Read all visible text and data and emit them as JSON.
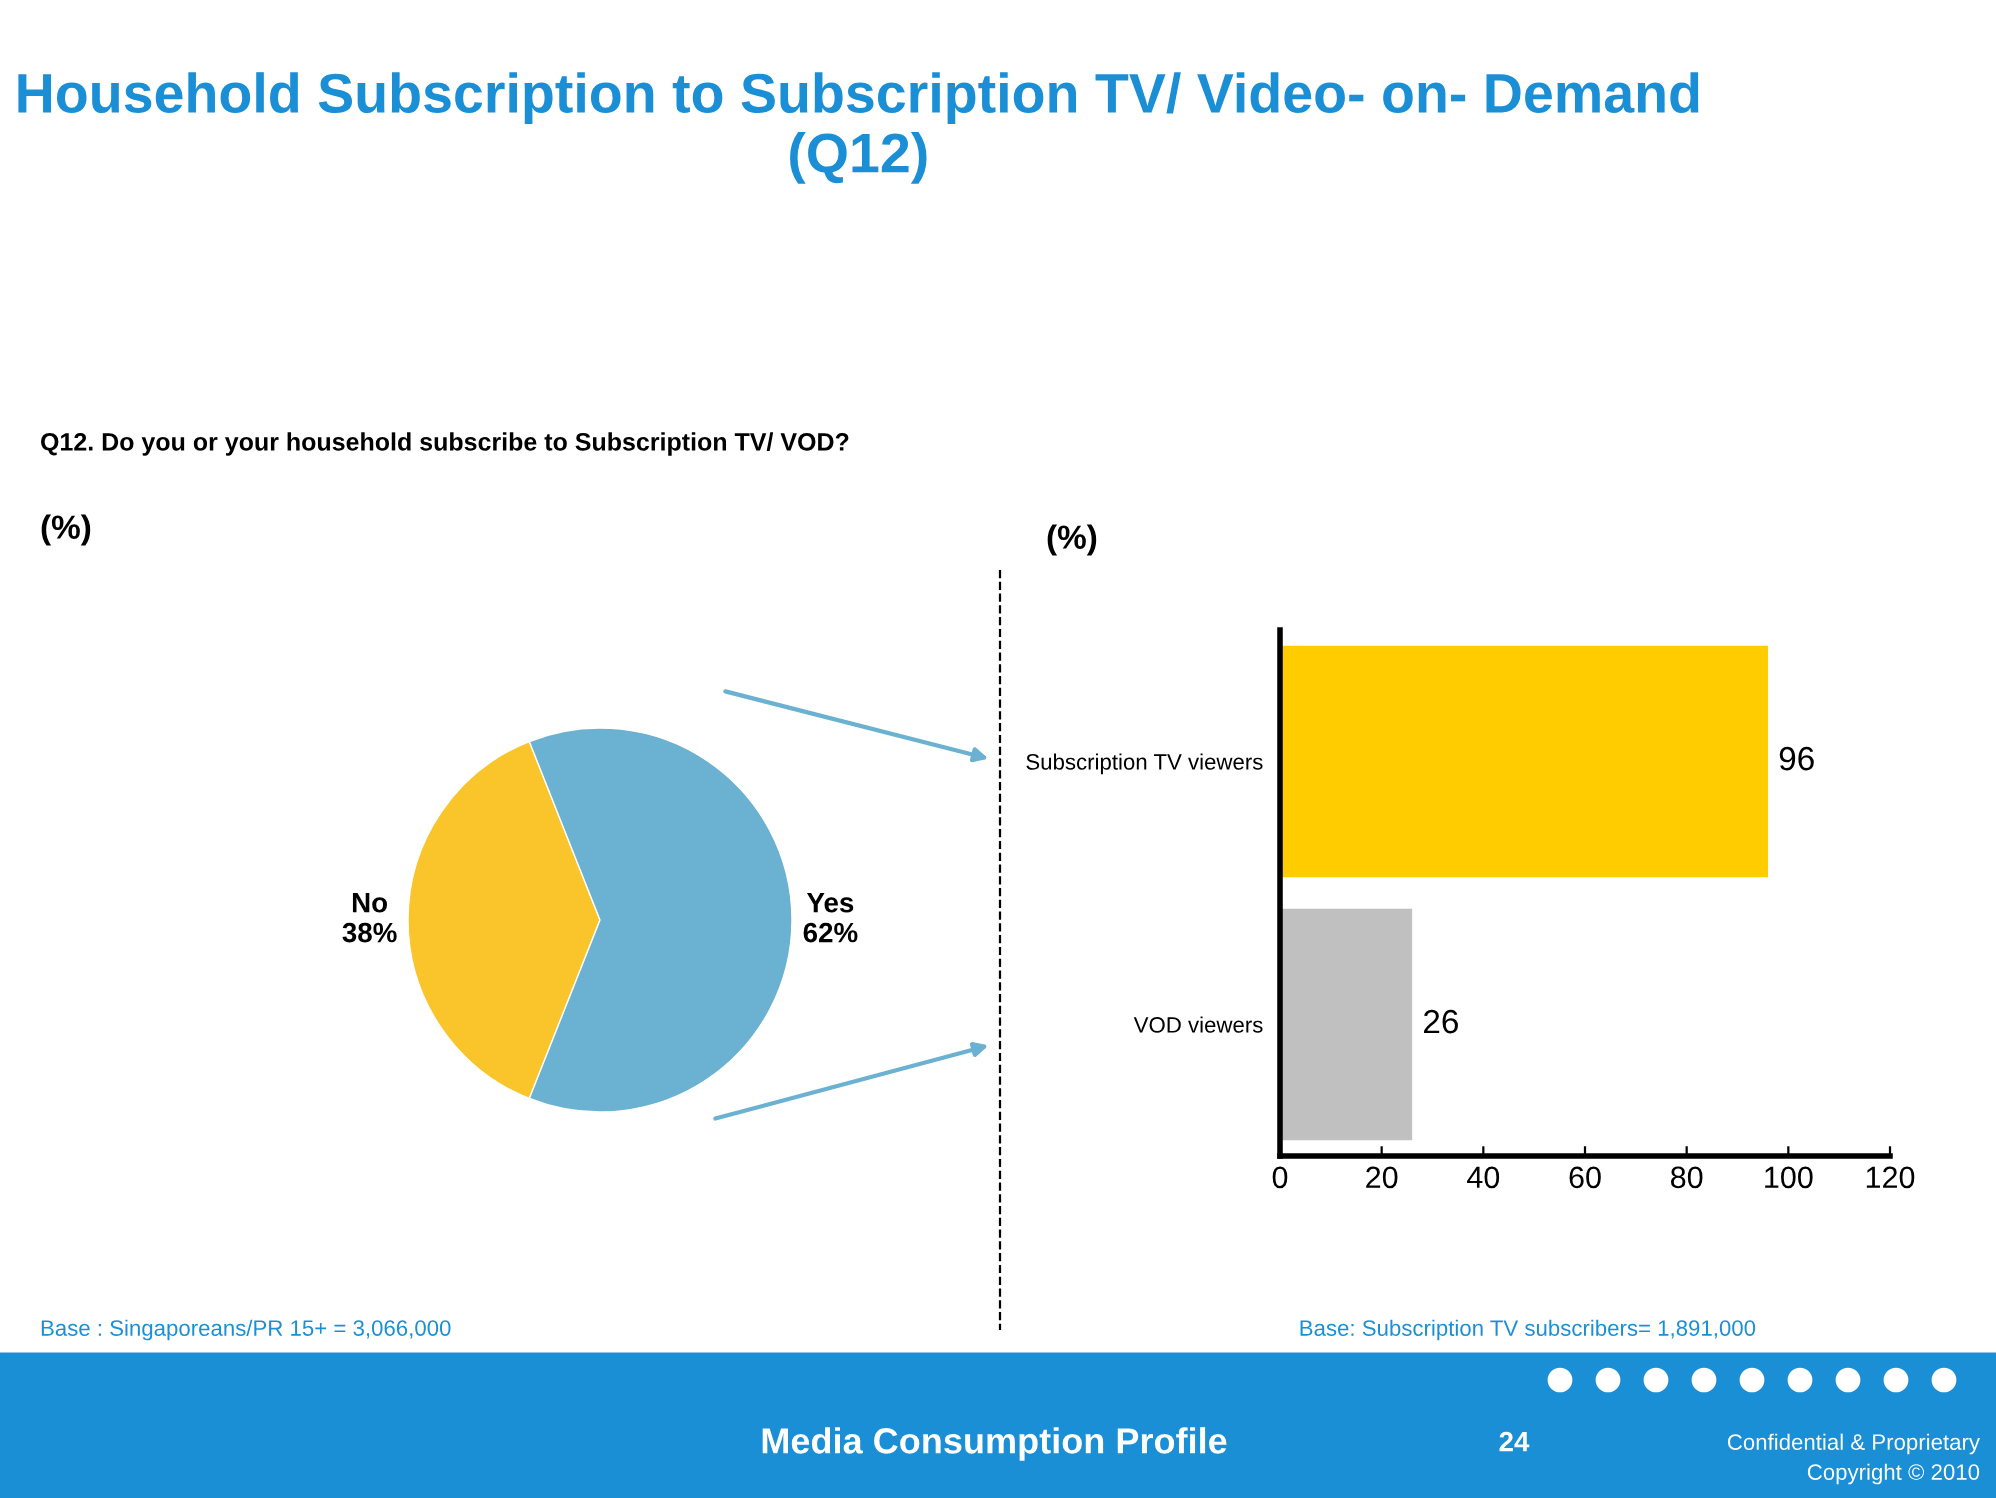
{
  "chart_data": [
    {
      "type": "pie",
      "title": "Household Subscription to Subscription TV/ Video- on- Demand (Q12)",
      "subtitle": "Q12. Do you or your household subscribe to Subscription TV/ VOD?",
      "categories": [
        "No",
        "Yes"
      ],
      "values": [
        38,
        62
      ],
      "colors": [
        "#f9c52b",
        "#6bb1d1"
      ],
      "value_labels": [
        "38%",
        "62%"
      ],
      "annotations": [
        "(%)",
        "Base : Singaporeans/PR 15+ = 3,066,000",
        "Media Consumption Profile",
        "24",
        "Confidential & Proprietary",
        "Copyright © 2010"
      ]
    },
    {
      "type": "bar",
      "orientation": "horizontal",
      "categories": [
        "Subscription TV viewers",
        "VOD viewers"
      ],
      "values": [
        96,
        26
      ],
      "colors": [
        "#ffcc00",
        "#c0c0c0"
      ],
      "xlim": [
        0,
        120
      ],
      "xticks": [
        0,
        20,
        40,
        60,
        80,
        100,
        120
      ],
      "data_labels": true,
      "grid": false,
      "annotations": [
        "(%)",
        "Base: Subscription TV subscribers= 1,891,000"
      ]
    }
  ]
}
